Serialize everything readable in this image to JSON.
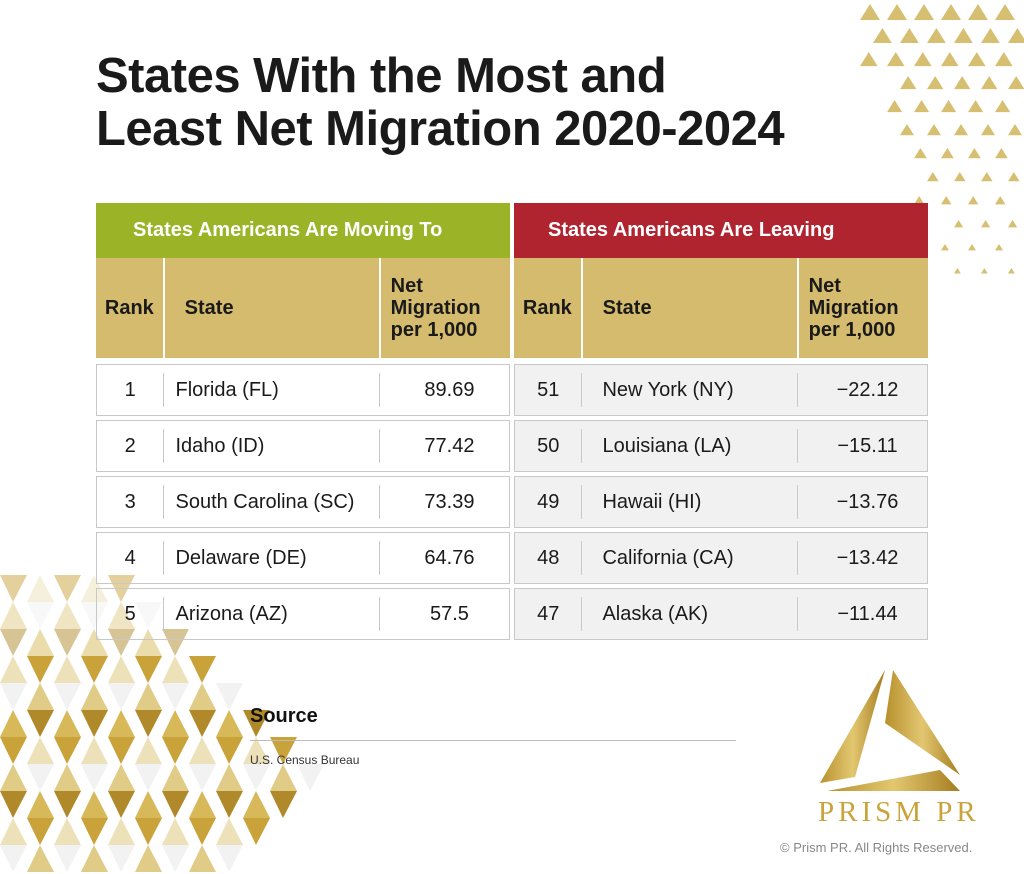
{
  "title_line1": "States With the Most and",
  "title_line2": "Least Net Migration 2020-2024",
  "moving_to": {
    "heading": "States Americans Are Moving To",
    "columns": [
      "Rank",
      "State",
      "Net Migration per 1,000"
    ],
    "rows": [
      {
        "rank": "1",
        "state": "Florida (FL)",
        "value": "89.69"
      },
      {
        "rank": "2",
        "state": "Idaho (ID)",
        "value": "77.42"
      },
      {
        "rank": "3",
        "state": "South Carolina (SC)",
        "value": "73.39"
      },
      {
        "rank": "4",
        "state": "Delaware (DE)",
        "value": "64.76"
      },
      {
        "rank": "5",
        "state": "Arizona (AZ)",
        "value": "57.5"
      }
    ]
  },
  "leaving": {
    "heading": "States Americans Are Leaving",
    "columns": [
      "Rank",
      "State",
      "Net Migration per 1,000"
    ],
    "rows": [
      {
        "rank": "51",
        "state": "New York (NY)",
        "value": "−22.12"
      },
      {
        "rank": "50",
        "state": "Louisiana (LA)",
        "value": "−15.11"
      },
      {
        "rank": "49",
        "state": "Hawaii (HI)",
        "value": "−13.76"
      },
      {
        "rank": "48",
        "state": "California (CA)",
        "value": "−13.42"
      },
      {
        "rank": "47",
        "state": "Alaska (AK)",
        "value": "−11.44"
      }
    ]
  },
  "source": {
    "label": "Source",
    "text": "U.S. Census Bureau"
  },
  "brand": "PRISM PR",
  "copyright": "© Prism PR. All Rights Reserved.",
  "colors": {
    "green": "#9bb427",
    "red": "#b02430",
    "gold": "#d5bb6e"
  }
}
